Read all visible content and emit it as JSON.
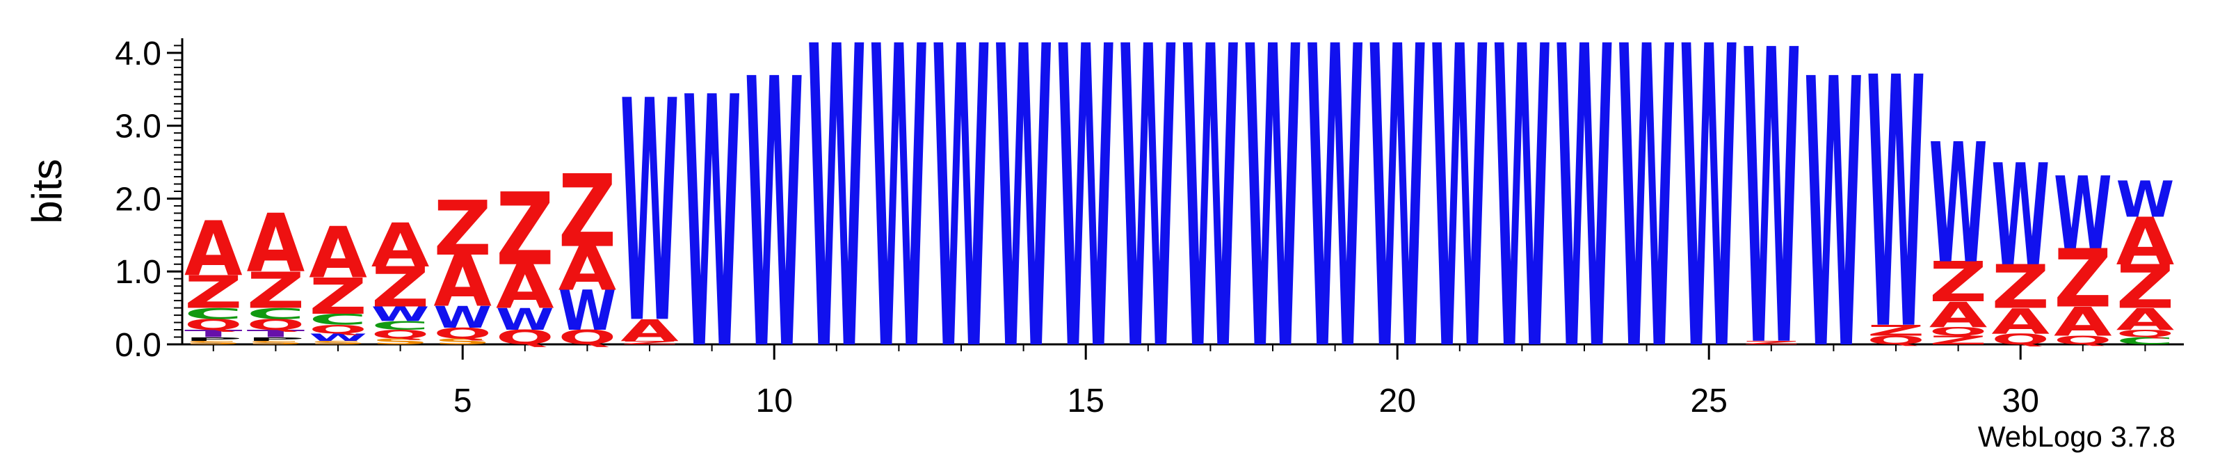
{
  "chart_data": {
    "type": "sequence-logo",
    "ylabel": "bits",
    "ylim": [
      0,
      4.2
    ],
    "yticks": [
      "0.0",
      "1.0",
      "2.0",
      "3.0",
      "4.0"
    ],
    "xticks": [
      "5",
      "10",
      "15",
      "20",
      "25",
      "30"
    ],
    "xtick_values": [
      5,
      10,
      15,
      20,
      25,
      30
    ],
    "positions": 32,
    "footer": "WebLogo 3.7.8",
    "colors": {
      "A": "#ee1111",
      "Z": "#ee1111",
      "W": "#1111ee",
      "C": "#119911",
      "Q": "#ee1111",
      "T": "#6611aa",
      "S": "#ee8800",
      "G": "#ee8800"
    },
    "columns": [
      [
        [
          "S",
          0.05
        ],
        [
          "P",
          0.05
        ],
        [
          "T",
          0.1
        ],
        [
          "Q",
          0.15
        ],
        [
          "C",
          0.15
        ],
        [
          "Z",
          0.45
        ],
        [
          "A",
          0.75
        ]
      ],
      [
        [
          "S",
          0.05
        ],
        [
          "P",
          0.05
        ],
        [
          "T",
          0.1
        ],
        [
          "Q",
          0.15
        ],
        [
          "C",
          0.15
        ],
        [
          "Z",
          0.5
        ],
        [
          "A",
          0.8
        ]
      ],
      [
        [
          "S",
          0.05
        ],
        [
          "W",
          0.1
        ],
        [
          "Q",
          0.12
        ],
        [
          "C",
          0.15
        ],
        [
          "Z",
          0.5
        ],
        [
          "A",
          0.7
        ]
      ],
      [
        [
          "S",
          0.08
        ],
        [
          "Q",
          0.12
        ],
        [
          "C",
          0.12
        ],
        [
          "W",
          0.2
        ],
        [
          "Z",
          0.55
        ],
        [
          "A",
          0.6
        ]
      ],
      [
        [
          "S",
          0.08
        ],
        [
          "Q",
          0.15
        ],
        [
          "W",
          0.3
        ],
        [
          "A",
          0.7
        ],
        [
          "Z",
          0.75
        ]
      ],
      [
        [
          "Q",
          0.2
        ],
        [
          "W",
          0.3
        ],
        [
          "A",
          0.6
        ],
        [
          "Z",
          1.0
        ]
      ],
      [
        [
          "Q",
          0.2
        ],
        [
          "W",
          0.55
        ],
        [
          "A",
          0.6
        ],
        [
          "Z",
          1.0
        ]
      ],
      [
        [
          "Z",
          0.05
        ],
        [
          "A",
          0.3
        ],
        [
          "W",
          3.05
        ]
      ],
      [
        [
          "W",
          3.45
        ]
      ],
      [
        [
          "W",
          3.7
        ]
      ],
      [
        [
          "W",
          4.15
        ]
      ],
      [
        [
          "W",
          4.15
        ]
      ],
      [
        [
          "W",
          4.15
        ]
      ],
      [
        [
          "W",
          4.15
        ]
      ],
      [
        [
          "W",
          4.15
        ]
      ],
      [
        [
          "W",
          4.15
        ]
      ],
      [
        [
          "W",
          4.15
        ]
      ],
      [
        [
          "W",
          4.15
        ]
      ],
      [
        [
          "W",
          4.15
        ]
      ],
      [
        [
          "W",
          4.15
        ]
      ],
      [
        [
          "W",
          4.15
        ]
      ],
      [
        [
          "W",
          4.15
        ]
      ],
      [
        [
          "W",
          4.15
        ]
      ],
      [
        [
          "W",
          4.15
        ]
      ],
      [
        [
          "W",
          4.15
        ]
      ],
      [
        [
          "Z",
          0.05
        ],
        [
          "W",
          4.05
        ]
      ],
      [
        [
          "W",
          3.7
        ]
      ],
      [
        [
          "Q",
          0.12
        ],
        [
          "Z",
          0.15
        ],
        [
          "W",
          3.45
        ]
      ],
      [
        [
          "Z",
          0.12
        ],
        [
          "Q",
          0.12
        ],
        [
          "A",
          0.35
        ],
        [
          "Z",
          0.55
        ],
        [
          "W",
          1.65
        ]
      ],
      [
        [
          "Q",
          0.15
        ],
        [
          "A",
          0.35
        ],
        [
          "Z",
          0.6
        ],
        [
          "W",
          1.4
        ]
      ],
      [
        [
          "Q",
          0.12
        ],
        [
          "A",
          0.4
        ],
        [
          "Z",
          0.8
        ],
        [
          "W",
          1.0
        ]
      ],
      [
        [
          "C",
          0.1
        ],
        [
          "Q",
          0.1
        ],
        [
          "A",
          0.3
        ],
        [
          "Z",
          0.6
        ],
        [
          "A",
          0.65
        ],
        [
          "W",
          0.5
        ]
      ]
    ]
  }
}
